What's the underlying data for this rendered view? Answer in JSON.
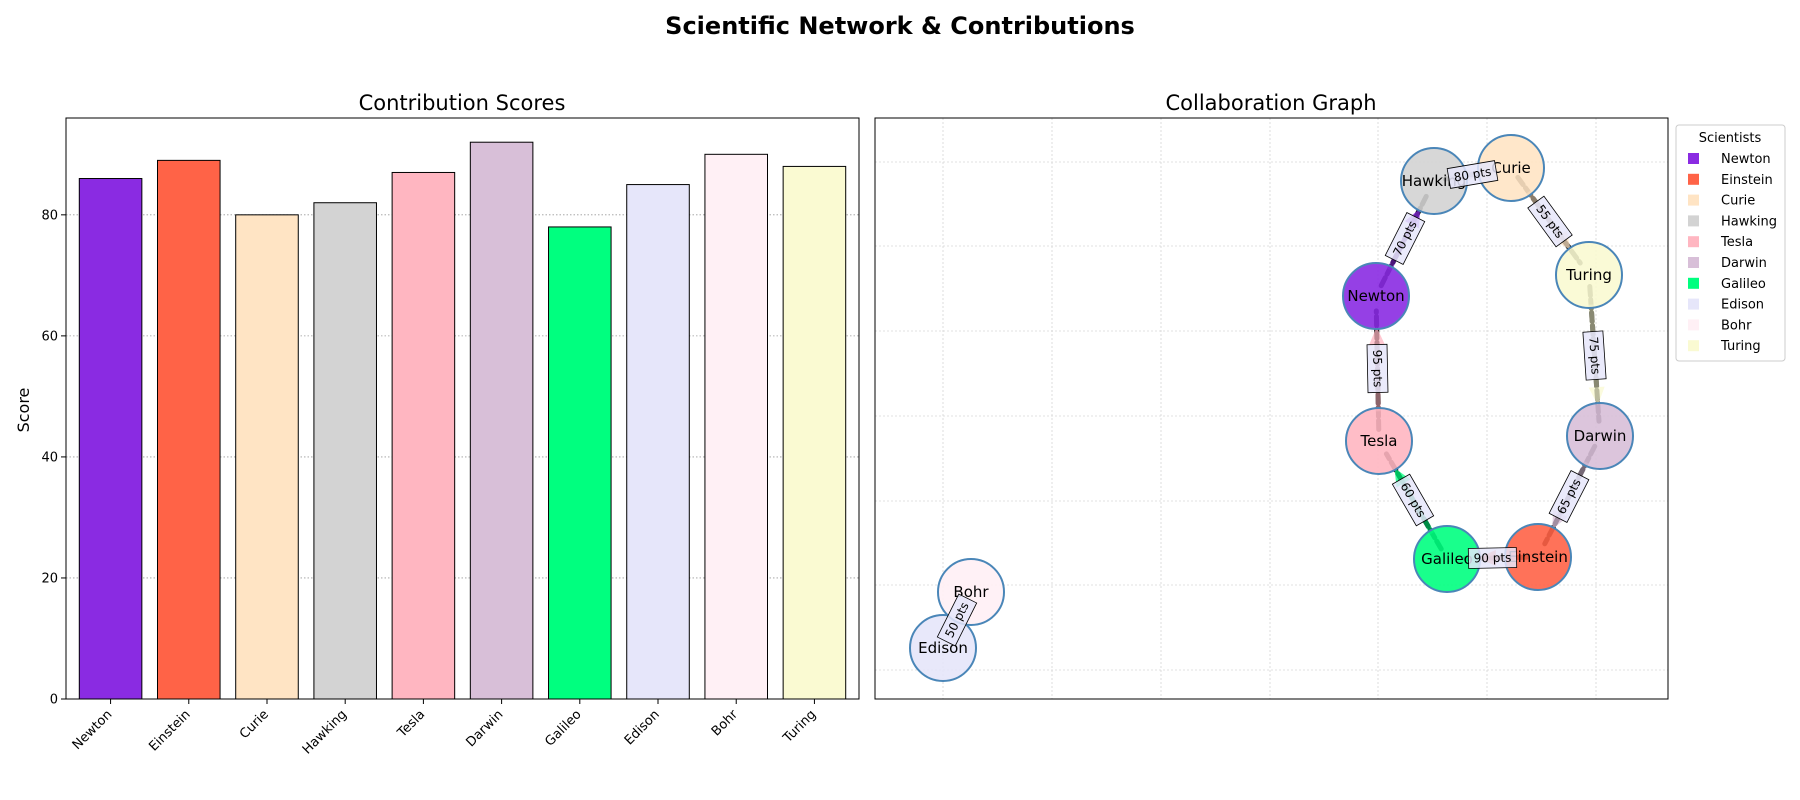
{
  "title": "Scientific Network & Contributions",
  "chart_data": [
    {
      "type": "bar",
      "title": "Contribution Scores",
      "xlabel": "",
      "ylabel": "Score",
      "categories": [
        "Newton",
        "Einstein",
        "Curie",
        "Hawking",
        "Tesla",
        "Darwin",
        "Galileo",
        "Edison",
        "Bohr",
        "Turing"
      ],
      "values": [
        86,
        89,
        80,
        82,
        87,
        92,
        78,
        85,
        90,
        88
      ],
      "colors": [
        "#8a2be2",
        "#ff6347",
        "#ffe4c4",
        "#d3d3d3",
        "#ffb6c1",
        "#d8bfd8",
        "#00ff7f",
        "#e6e6fa",
        "#fff0f5",
        "#fafad2"
      ],
      "yticks": [
        0,
        20,
        40,
        60,
        80
      ],
      "ylim": [
        0,
        96
      ],
      "grid": "y-dotted"
    },
    {
      "type": "network",
      "title": "Collaboration Graph",
      "nodes": [
        {
          "id": "Newton",
          "color": "#8a2be2"
        },
        {
          "id": "Einstein",
          "color": "#ff6347"
        },
        {
          "id": "Curie",
          "color": "#ffe4c4"
        },
        {
          "id": "Hawking",
          "color": "#d3d3d3"
        },
        {
          "id": "Tesla",
          "color": "#ffb6c1"
        },
        {
          "id": "Darwin",
          "color": "#d8bfd8"
        },
        {
          "id": "Galileo",
          "color": "#00ff7f"
        },
        {
          "id": "Edison",
          "color": "#e6e6fa"
        },
        {
          "id": "Bohr",
          "color": "#fff0f5"
        },
        {
          "id": "Turing",
          "color": "#fafad2"
        }
      ],
      "edges": [
        {
          "source": "Tesla",
          "target": "Newton",
          "label": "95 pts"
        },
        {
          "source": "Newton",
          "target": "Hawking",
          "label": "70 pts"
        },
        {
          "source": "Hawking",
          "target": "Curie",
          "label": "80 pts"
        },
        {
          "source": "Curie",
          "target": "Turing",
          "label": "55 pts"
        },
        {
          "source": "Turing",
          "target": "Darwin",
          "label": "75 pts"
        },
        {
          "source": "Darwin",
          "target": "Einstein",
          "label": "65 pts"
        },
        {
          "source": "Einstein",
          "target": "Galileo",
          "label": "90 pts"
        },
        {
          "source": "Galileo",
          "target": "Tesla",
          "label": "60 pts"
        },
        {
          "source": "Bohr",
          "target": "Edison",
          "label": "50 pts"
        }
      ],
      "grid": "dotted",
      "legend": {
        "title": "Scientists",
        "placement": "outside-upper-right",
        "entries": [
          "Newton",
          "Einstein",
          "Curie",
          "Hawking",
          "Tesla",
          "Darwin",
          "Galileo",
          "Edison",
          "Bohr",
          "Turing"
        ]
      }
    }
  ]
}
